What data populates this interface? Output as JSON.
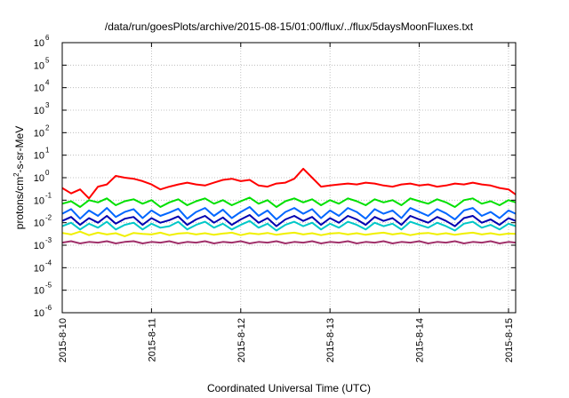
{
  "chart_data": {
    "type": "line",
    "title": "/data/run/goesPlots/archive/2015-08-15/01:00/flux/../flux/5daysMoonFluxes.txt",
    "xlabel": "Coordinated Universal Time (UTC)",
    "ylabel": {
      "pre": "protons/cm",
      "sup": "2",
      "post": "-s-sr-MeV"
    },
    "yscale": "log",
    "ylim": [
      1e-06,
      1000000.0
    ],
    "xlim": [
      0,
      5.08
    ],
    "grid": true,
    "x_ticks": [
      {
        "value": 0,
        "label": "2015-8-10"
      },
      {
        "value": 1,
        "label": "2015-8-11"
      },
      {
        "value": 2,
        "label": "2015-8-12"
      },
      {
        "value": 3,
        "label": "2015-8-13"
      },
      {
        "value": 4,
        "label": "2015-8-14"
      },
      {
        "value": 5,
        "label": "2015-8-15"
      }
    ],
    "y_ticks": [
      {
        "exp": "-6",
        "value": 1e-06
      },
      {
        "exp": "-5",
        "value": 1e-05
      },
      {
        "exp": "-4",
        "value": 0.0001
      },
      {
        "exp": "-3",
        "value": 0.001
      },
      {
        "exp": "-2",
        "value": 0.01
      },
      {
        "exp": "-1",
        "value": 0.1
      },
      {
        "exp": "0",
        "value": 1
      },
      {
        "exp": "1",
        "value": 10
      },
      {
        "exp": "2",
        "value": 100
      },
      {
        "exp": "3",
        "value": 1000
      },
      {
        "exp": "4",
        "value": 10000
      },
      {
        "exp": "5",
        "value": 100000
      },
      {
        "exp": "6",
        "value": 1000000
      }
    ],
    "series": [
      {
        "color": "#ff0000",
        "x": [
          0,
          0.1,
          0.2,
          0.3,
          0.4,
          0.5,
          0.6,
          0.7,
          0.8,
          0.9,
          1.0,
          1.1,
          1.2,
          1.3,
          1.4,
          1.5,
          1.6,
          1.7,
          1.8,
          1.9,
          2.0,
          2.1,
          2.2,
          2.3,
          2.4,
          2.5,
          2.6,
          2.7,
          2.8,
          2.9,
          3.0,
          3.1,
          3.2,
          3.3,
          3.4,
          3.5,
          3.6,
          3.7,
          3.8,
          3.9,
          4.0,
          4.1,
          4.2,
          4.3,
          4.4,
          4.5,
          4.6,
          4.7,
          4.8,
          4.9,
          5.0,
          5.08
        ],
        "y": [
          0.35,
          0.2,
          0.3,
          0.12,
          0.4,
          0.5,
          1.2,
          1.0,
          0.9,
          0.7,
          0.5,
          0.3,
          0.4,
          0.5,
          0.6,
          0.5,
          0.45,
          0.6,
          0.8,
          0.9,
          0.7,
          0.8,
          0.45,
          0.4,
          0.55,
          0.6,
          0.9,
          2.5,
          1.0,
          0.4,
          0.45,
          0.5,
          0.55,
          0.5,
          0.6,
          0.55,
          0.45,
          0.4,
          0.5,
          0.55,
          0.45,
          0.5,
          0.4,
          0.45,
          0.55,
          0.5,
          0.6,
          0.5,
          0.45,
          0.35,
          0.3,
          0.18
        ]
      },
      {
        "color": "#00e000",
        "x": [
          0,
          0.1,
          0.2,
          0.3,
          0.4,
          0.5,
          0.6,
          0.7,
          0.8,
          0.9,
          1.0,
          1.1,
          1.2,
          1.3,
          1.4,
          1.5,
          1.6,
          1.7,
          1.8,
          1.9,
          2.0,
          2.1,
          2.2,
          2.3,
          2.4,
          2.5,
          2.6,
          2.7,
          2.8,
          2.9,
          3.0,
          3.1,
          3.2,
          3.3,
          3.4,
          3.5,
          3.6,
          3.7,
          3.8,
          3.9,
          4.0,
          4.1,
          4.2,
          4.3,
          4.4,
          4.5,
          4.6,
          4.7,
          4.8,
          4.9,
          5.0,
          5.08
        ],
        "y": [
          0.07,
          0.09,
          0.05,
          0.1,
          0.08,
          0.12,
          0.06,
          0.09,
          0.11,
          0.07,
          0.1,
          0.05,
          0.08,
          0.11,
          0.06,
          0.09,
          0.12,
          0.07,
          0.1,
          0.06,
          0.09,
          0.13,
          0.07,
          0.1,
          0.05,
          0.09,
          0.12,
          0.08,
          0.11,
          0.06,
          0.1,
          0.07,
          0.12,
          0.09,
          0.06,
          0.11,
          0.08,
          0.1,
          0.06,
          0.12,
          0.09,
          0.07,
          0.11,
          0.08,
          0.05,
          0.1,
          0.12,
          0.07,
          0.09,
          0.06,
          0.1,
          0.08
        ]
      },
      {
        "color": "#0066ff",
        "x": [
          0,
          0.1,
          0.2,
          0.3,
          0.4,
          0.5,
          0.6,
          0.7,
          0.8,
          0.9,
          1.0,
          1.1,
          1.2,
          1.3,
          1.4,
          1.5,
          1.6,
          1.7,
          1.8,
          1.9,
          2.0,
          2.1,
          2.2,
          2.3,
          2.4,
          2.5,
          2.6,
          2.7,
          2.8,
          2.9,
          3.0,
          3.1,
          3.2,
          3.3,
          3.4,
          3.5,
          3.6,
          3.7,
          3.8,
          3.9,
          4.0,
          4.1,
          4.2,
          4.3,
          4.4,
          4.5,
          4.6,
          4.7,
          4.8,
          4.9,
          5.0,
          5.08
        ],
        "y": [
          0.025,
          0.04,
          0.015,
          0.035,
          0.02,
          0.045,
          0.018,
          0.03,
          0.04,
          0.016,
          0.035,
          0.02,
          0.028,
          0.042,
          0.015,
          0.03,
          0.045,
          0.02,
          0.038,
          0.016,
          0.03,
          0.05,
          0.02,
          0.035,
          0.014,
          0.03,
          0.045,
          0.025,
          0.04,
          0.016,
          0.035,
          0.02,
          0.045,
          0.03,
          0.015,
          0.04,
          0.025,
          0.035,
          0.016,
          0.045,
          0.03,
          0.02,
          0.04,
          0.026,
          0.014,
          0.035,
          0.045,
          0.02,
          0.03,
          0.016,
          0.035,
          0.025
        ]
      },
      {
        "color": "#0000b0",
        "x": [
          0,
          0.1,
          0.2,
          0.3,
          0.4,
          0.5,
          0.6,
          0.7,
          0.8,
          0.9,
          1.0,
          1.1,
          1.2,
          1.3,
          1.4,
          1.5,
          1.6,
          1.7,
          1.8,
          1.9,
          2.0,
          2.1,
          2.2,
          2.3,
          2.4,
          2.5,
          2.6,
          2.7,
          2.8,
          2.9,
          3.0,
          3.1,
          3.2,
          3.3,
          3.4,
          3.5,
          3.6,
          3.7,
          3.8,
          3.9,
          4.0,
          4.1,
          4.2,
          4.3,
          4.4,
          4.5,
          4.6,
          4.7,
          4.8,
          4.9,
          5.0,
          5.08
        ],
        "y": [
          0.012,
          0.018,
          0.008,
          0.016,
          0.01,
          0.02,
          0.009,
          0.015,
          0.018,
          0.008,
          0.016,
          0.01,
          0.013,
          0.019,
          0.008,
          0.014,
          0.02,
          0.01,
          0.017,
          0.008,
          0.014,
          0.022,
          0.01,
          0.016,
          0.007,
          0.014,
          0.02,
          0.012,
          0.018,
          0.008,
          0.016,
          0.01,
          0.02,
          0.014,
          0.008,
          0.018,
          0.012,
          0.016,
          0.008,
          0.02,
          0.014,
          0.01,
          0.018,
          0.012,
          0.007,
          0.016,
          0.02,
          0.01,
          0.014,
          0.008,
          0.016,
          0.012
        ]
      },
      {
        "color": "#00c8c8",
        "x": [
          0,
          0.1,
          0.2,
          0.3,
          0.4,
          0.5,
          0.6,
          0.7,
          0.8,
          0.9,
          1.0,
          1.1,
          1.2,
          1.3,
          1.4,
          1.5,
          1.6,
          1.7,
          1.8,
          1.9,
          2.0,
          2.1,
          2.2,
          2.3,
          2.4,
          2.5,
          2.6,
          2.7,
          2.8,
          2.9,
          3.0,
          3.1,
          3.2,
          3.3,
          3.4,
          3.5,
          3.6,
          3.7,
          3.8,
          3.9,
          4.0,
          4.1,
          4.2,
          4.3,
          4.4,
          4.5,
          4.6,
          4.7,
          4.8,
          4.9,
          5.0,
          5.08
        ],
        "y": [
          0.007,
          0.01,
          0.005,
          0.009,
          0.006,
          0.011,
          0.005,
          0.008,
          0.01,
          0.005,
          0.009,
          0.006,
          0.007,
          0.011,
          0.005,
          0.008,
          0.011,
          0.006,
          0.009,
          0.005,
          0.008,
          0.012,
          0.006,
          0.009,
          0.0045,
          0.008,
          0.011,
          0.007,
          0.01,
          0.005,
          0.009,
          0.006,
          0.011,
          0.008,
          0.005,
          0.01,
          0.007,
          0.009,
          0.005,
          0.011,
          0.008,
          0.006,
          0.01,
          0.007,
          0.0045,
          0.009,
          0.011,
          0.006,
          0.008,
          0.005,
          0.009,
          0.007
        ]
      },
      {
        "color": "#f0f000",
        "x": [
          0,
          0.1,
          0.2,
          0.3,
          0.4,
          0.5,
          0.6,
          0.7,
          0.8,
          0.9,
          1.0,
          1.1,
          1.2,
          1.3,
          1.4,
          1.5,
          1.6,
          1.7,
          1.8,
          1.9,
          2.0,
          2.1,
          2.2,
          2.3,
          2.4,
          2.5,
          2.6,
          2.7,
          2.8,
          2.9,
          3.0,
          3.1,
          3.2,
          3.3,
          3.4,
          3.5,
          3.6,
          3.7,
          3.8,
          3.9,
          4.0,
          4.1,
          4.2,
          4.3,
          4.4,
          4.5,
          4.6,
          4.7,
          4.8,
          4.9,
          5.0,
          5.08
        ],
        "y": [
          0.0035,
          0.003,
          0.004,
          0.0028,
          0.0036,
          0.003,
          0.0034,
          0.0025,
          0.0035,
          0.0032,
          0.003,
          0.0036,
          0.0028,
          0.0033,
          0.0035,
          0.003,
          0.0034,
          0.0029,
          0.0033,
          0.0036,
          0.0028,
          0.0034,
          0.0031,
          0.0035,
          0.0029,
          0.0033,
          0.0036,
          0.003,
          0.0034,
          0.0028,
          0.0033,
          0.0035,
          0.003,
          0.0034,
          0.0029,
          0.0033,
          0.0036,
          0.003,
          0.0034,
          0.0028,
          0.0033,
          0.0035,
          0.003,
          0.0034,
          0.0029,
          0.0033,
          0.0036,
          0.003,
          0.0034,
          0.0029,
          0.0033,
          0.0032
        ]
      },
      {
        "color": "#a0306a",
        "x": [
          0,
          0.1,
          0.2,
          0.3,
          0.4,
          0.5,
          0.6,
          0.7,
          0.8,
          0.9,
          1.0,
          1.1,
          1.2,
          1.3,
          1.4,
          1.5,
          1.6,
          1.7,
          1.8,
          1.9,
          2.0,
          2.1,
          2.2,
          2.3,
          2.4,
          2.5,
          2.6,
          2.7,
          2.8,
          2.9,
          3.0,
          3.1,
          3.2,
          3.3,
          3.4,
          3.5,
          3.6,
          3.7,
          3.8,
          3.9,
          4.0,
          4.1,
          4.2,
          4.3,
          4.4,
          4.5,
          4.6,
          4.7,
          4.8,
          4.9,
          5.0,
          5.08
        ],
        "y": [
          0.0013,
          0.0015,
          0.0012,
          0.0014,
          0.0013,
          0.0015,
          0.0012,
          0.0014,
          0.0015,
          0.0012,
          0.0014,
          0.0013,
          0.0015,
          0.0012,
          0.0014,
          0.0013,
          0.0015,
          0.0012,
          0.0014,
          0.0013,
          0.0015,
          0.0012,
          0.0014,
          0.0013,
          0.0015,
          0.0012,
          0.0014,
          0.0013,
          0.0015,
          0.0012,
          0.0014,
          0.0013,
          0.0015,
          0.0012,
          0.0014,
          0.0013,
          0.0015,
          0.0012,
          0.0014,
          0.0013,
          0.0015,
          0.0012,
          0.0014,
          0.0013,
          0.0015,
          0.0012,
          0.0014,
          0.0013,
          0.0015,
          0.0012,
          0.0014,
          0.0013
        ]
      }
    ]
  }
}
